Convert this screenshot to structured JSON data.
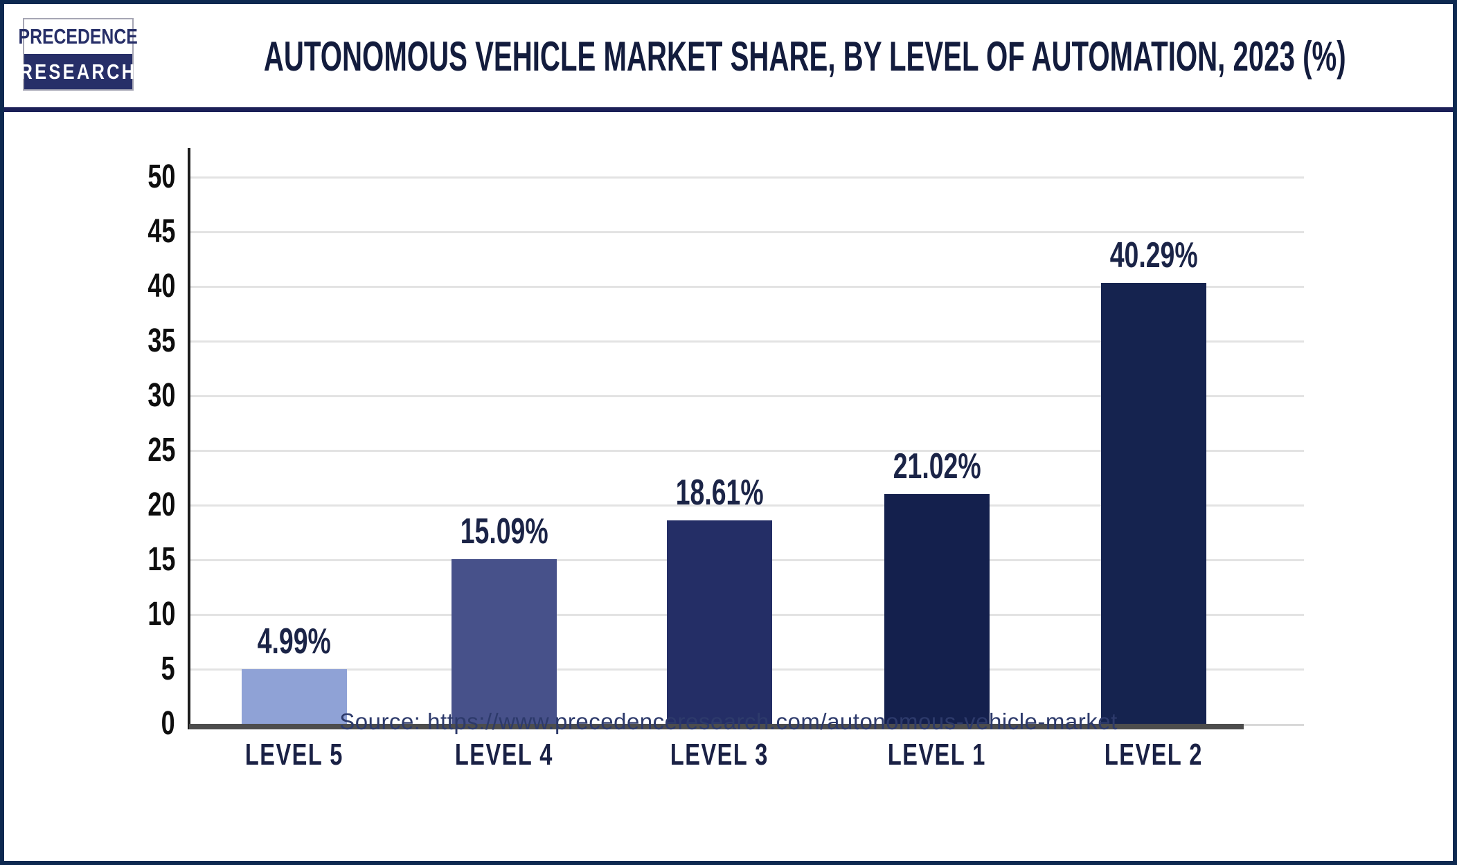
{
  "header": {
    "logo_line1": "PRECEDENCE",
    "logo_line2": "RESEARCH",
    "title": "AUTONOMOUS VEHICLE MARKET SHARE, BY LEVEL OF AUTOMATION, 2023 (%)"
  },
  "chart_data": {
    "type": "bar",
    "title": "Autonomous Vehicle Market Share, by Level of Automation, 2023 (%)",
    "categories": [
      "LEVEL 5",
      "LEVEL 4",
      "LEVEL 3",
      "LEVEL 1",
      "LEVEL 2"
    ],
    "values": [
      4.99,
      15.09,
      18.61,
      21.02,
      40.29
    ],
    "value_labels": [
      "4.99%",
      "15.09%",
      "18.61%",
      "21.02%",
      "40.29%"
    ],
    "bar_colors": [
      "#8fa2d6",
      "#47518a",
      "#242e66",
      "#14204d",
      "#15234f"
    ],
    "xlabel": "",
    "ylabel": "",
    "ylim": [
      0,
      50
    ],
    "ytick_step": 5,
    "ytick_labels": [
      "0",
      "5",
      "10",
      "15",
      "20",
      "25",
      "30",
      "35",
      "40",
      "45",
      "50"
    ],
    "grid": true,
    "legend": false,
    "unit": "%"
  },
  "footer": {
    "source": "Source: https://www.precedenceresearch.com/autonomous-vehicle-market"
  },
  "colors": {
    "frame_border": "#0e2950",
    "header_divider": "#1b2057",
    "title_text": "#131c3d",
    "tick_text": "#0e0e0e",
    "value_label_text": "#1b2447",
    "category_text": "#1a2145",
    "axis_line": "#4d4d4d",
    "gridline": "#e3e3e3",
    "source_text": "#2d3a6b",
    "logo_navy": "#272f68"
  }
}
